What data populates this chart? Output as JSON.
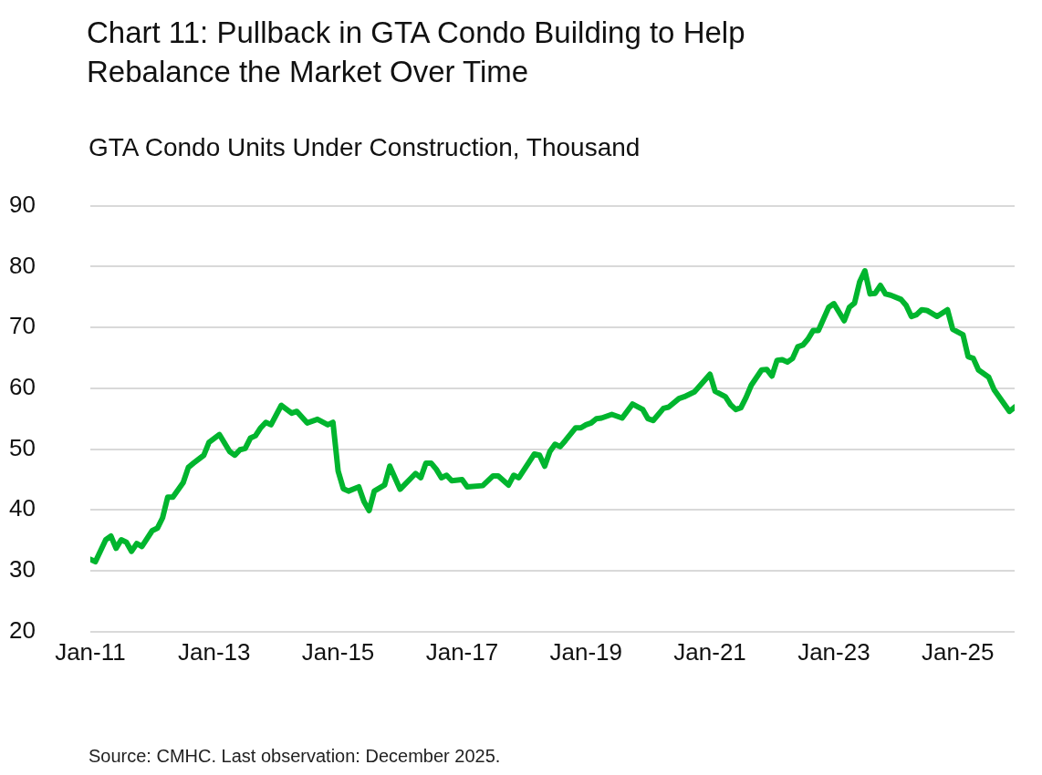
{
  "chart_data": {
    "type": "line",
    "title": "Chart 11: Pullback in GTA Condo Building to Help Rebalance the Market Over Time",
    "ylabel": "GTA Condo Units Under Construction, Thousand",
    "annotations": [
      "Source: CMHC. Last observation: December 2025."
    ],
    "x": [
      "2011-01",
      "2011-02",
      "2011-04",
      "2011-05",
      "2011-06",
      "2011-07",
      "2011-08",
      "2011-09",
      "2011-10",
      "2011-11",
      "2012-01",
      "2012-02",
      "2012-03",
      "2012-04",
      "2012-05",
      "2012-07",
      "2012-08",
      "2012-09",
      "2012-11",
      "2012-12",
      "2013-02",
      "2013-04",
      "2013-05",
      "2013-06",
      "2013-07",
      "2013-08",
      "2013-09",
      "2013-10",
      "2013-11",
      "2013-12",
      "2014-02",
      "2014-04",
      "2014-05",
      "2014-07",
      "2014-09",
      "2014-11",
      "2014-12",
      "2015-01",
      "2015-02",
      "2015-03",
      "2015-05",
      "2015-06",
      "2015-07",
      "2015-08",
      "2015-10",
      "2015-11",
      "2016-01",
      "2016-04",
      "2016-05",
      "2016-06",
      "2016-07",
      "2016-08",
      "2016-09",
      "2016-10",
      "2016-11",
      "2017-01",
      "2017-02",
      "2017-05",
      "2017-07",
      "2017-08",
      "2017-10",
      "2017-11",
      "2017-12",
      "2018-02",
      "2018-03",
      "2018-04",
      "2018-05",
      "2018-06",
      "2018-07",
      "2018-08",
      "2018-09",
      "2018-11",
      "2018-12",
      "2019-01",
      "2019-02",
      "2019-03",
      "2019-04",
      "2019-06",
      "2019-08",
      "2019-10",
      "2019-12",
      "2020-01",
      "2020-02",
      "2020-04",
      "2020-05",
      "2020-07",
      "2020-08",
      "2020-10",
      "2021-01",
      "2021-02",
      "2021-04",
      "2021-05",
      "2021-06",
      "2021-07",
      "2021-08",
      "2021-09",
      "2021-11",
      "2021-12",
      "2022-01",
      "2022-02",
      "2022-03",
      "2022-04",
      "2022-05",
      "2022-06",
      "2022-07",
      "2022-08",
      "2022-09",
      "2022-10",
      "2022-12",
      "2023-01",
      "2023-03",
      "2023-04",
      "2023-05",
      "2023-06",
      "2023-07",
      "2023-08",
      "2023-09",
      "2023-10",
      "2023-11",
      "2023-12",
      "2024-02",
      "2024-03",
      "2024-04",
      "2024-05",
      "2024-06",
      "2024-07",
      "2024-09",
      "2024-11",
      "2024-12",
      "2025-02",
      "2025-03",
      "2025-04",
      "2025-05",
      "2025-07",
      "2025-08",
      "2025-09",
      "2025-11",
      "2025-12"
    ],
    "series": [
      {
        "color": "#00b52e",
        "values": [
          31.9,
          31.5,
          35.1,
          35.7,
          33.7,
          35.1,
          34.7,
          33.2,
          34.5,
          34.0,
          36.6,
          37.0,
          38.7,
          42.1,
          42.1,
          44.5,
          47.0,
          47.7,
          49.0,
          51.1,
          52.4,
          49.6,
          49.0,
          49.9,
          50.1,
          51.8,
          52.2,
          53.5,
          54.4,
          54.0,
          57.2,
          55.9,
          56.2,
          54.3,
          54.9,
          54.0,
          54.4,
          46.4,
          43.5,
          43.1,
          43.8,
          41.4,
          39.9,
          43.1,
          44.1,
          47.2,
          43.4,
          46.0,
          45.3,
          47.7,
          47.7,
          46.7,
          45.3,
          45.7,
          44.8,
          45.0,
          43.8,
          44.0,
          45.6,
          45.6,
          44.1,
          45.7,
          45.3,
          47.9,
          49.2,
          49.0,
          47.2,
          49.6,
          50.8,
          50.4,
          51.4,
          53.5,
          53.5,
          54.0,
          54.3,
          55.0,
          55.1,
          55.7,
          55.1,
          57.4,
          56.5,
          55.0,
          54.7,
          56.7,
          56.9,
          58.3,
          58.6,
          59.4,
          62.3,
          59.5,
          58.6,
          57.3,
          56.5,
          56.8,
          58.5,
          60.5,
          63.0,
          63.1,
          62.0,
          64.6,
          64.7,
          64.3,
          64.9,
          66.8,
          67.1,
          68.1,
          69.5,
          69.5,
          73.3,
          73.9,
          71.1,
          73.3,
          74.0,
          77.5,
          79.3,
          75.5,
          75.6,
          76.9,
          75.5,
          75.3,
          74.6,
          73.6,
          71.8,
          72.1,
          72.9,
          72.8,
          71.8,
          72.9,
          69.7,
          68.8,
          65.2,
          64.9,
          63.0,
          61.8,
          59.8,
          58.6,
          56.2,
          56.9
        ]
      }
    ],
    "xlim": [
      "2011-01",
      "2025-12"
    ],
    "xticks": [
      {
        "value": "2011-01",
        "label": "Jan-11"
      },
      {
        "value": "2013-01",
        "label": "Jan-13"
      },
      {
        "value": "2015-01",
        "label": "Jan-15"
      },
      {
        "value": "2017-01",
        "label": "Jan-17"
      },
      {
        "value": "2019-01",
        "label": "Jan-19"
      },
      {
        "value": "2021-01",
        "label": "Jan-21"
      },
      {
        "value": "2023-01",
        "label": "Jan-23"
      },
      {
        "value": "2025-01",
        "label": "Jan-25"
      }
    ],
    "ylim": [
      20,
      90
    ],
    "yticks": [
      20,
      30,
      40,
      50,
      60,
      70,
      80,
      90
    ],
    "grid": "y",
    "legend": false,
    "marker": "none",
    "line_style": "solid"
  }
}
